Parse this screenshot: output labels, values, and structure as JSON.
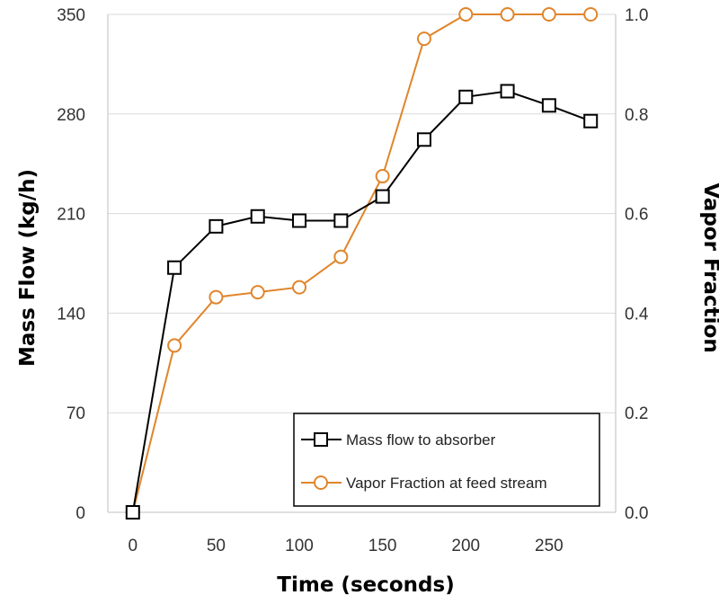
{
  "chart_data": {
    "type": "line",
    "title": "",
    "xlabel": "Time (seconds)",
    "ylabel": "Mass Flow (kg/h)",
    "y2label": "Vapor Fraction",
    "xlim": [
      -15,
      290
    ],
    "ylim": [
      0,
      350
    ],
    "y2lim": [
      0,
      1.0
    ],
    "x_ticks": [
      0,
      50,
      100,
      150,
      200,
      250
    ],
    "y_ticks": [
      0,
      70,
      140,
      210,
      280,
      350
    ],
    "y2_ticks": [
      "0.0",
      "0.2",
      "0.4",
      "0.6",
      "0.8",
      "1.0"
    ],
    "grid": "horizontal",
    "legend_position": "bottom-right",
    "series": [
      {
        "name": "Mass flow to absorber",
        "axis": "left",
        "color": "#000000",
        "marker": "square",
        "x": [
          0,
          25,
          50,
          75,
          100,
          125,
          150,
          175,
          200,
          225,
          250,
          275
        ],
        "values": [
          0,
          172,
          201,
          208,
          205,
          205,
          222,
          262,
          292,
          296,
          286,
          275
        ]
      },
      {
        "name": "Vapor Fraction at feed stream",
        "axis": "right",
        "color": "#E0852B",
        "marker": "circle",
        "x": [
          0,
          25,
          50,
          75,
          100,
          125,
          150,
          175,
          200,
          225,
          250,
          275
        ],
        "values": [
          0,
          0.335,
          0.432,
          0.442,
          0.452,
          0.513,
          0.675,
          0.951,
          1.0,
          1.0,
          1.0,
          1.0
        ]
      }
    ]
  }
}
